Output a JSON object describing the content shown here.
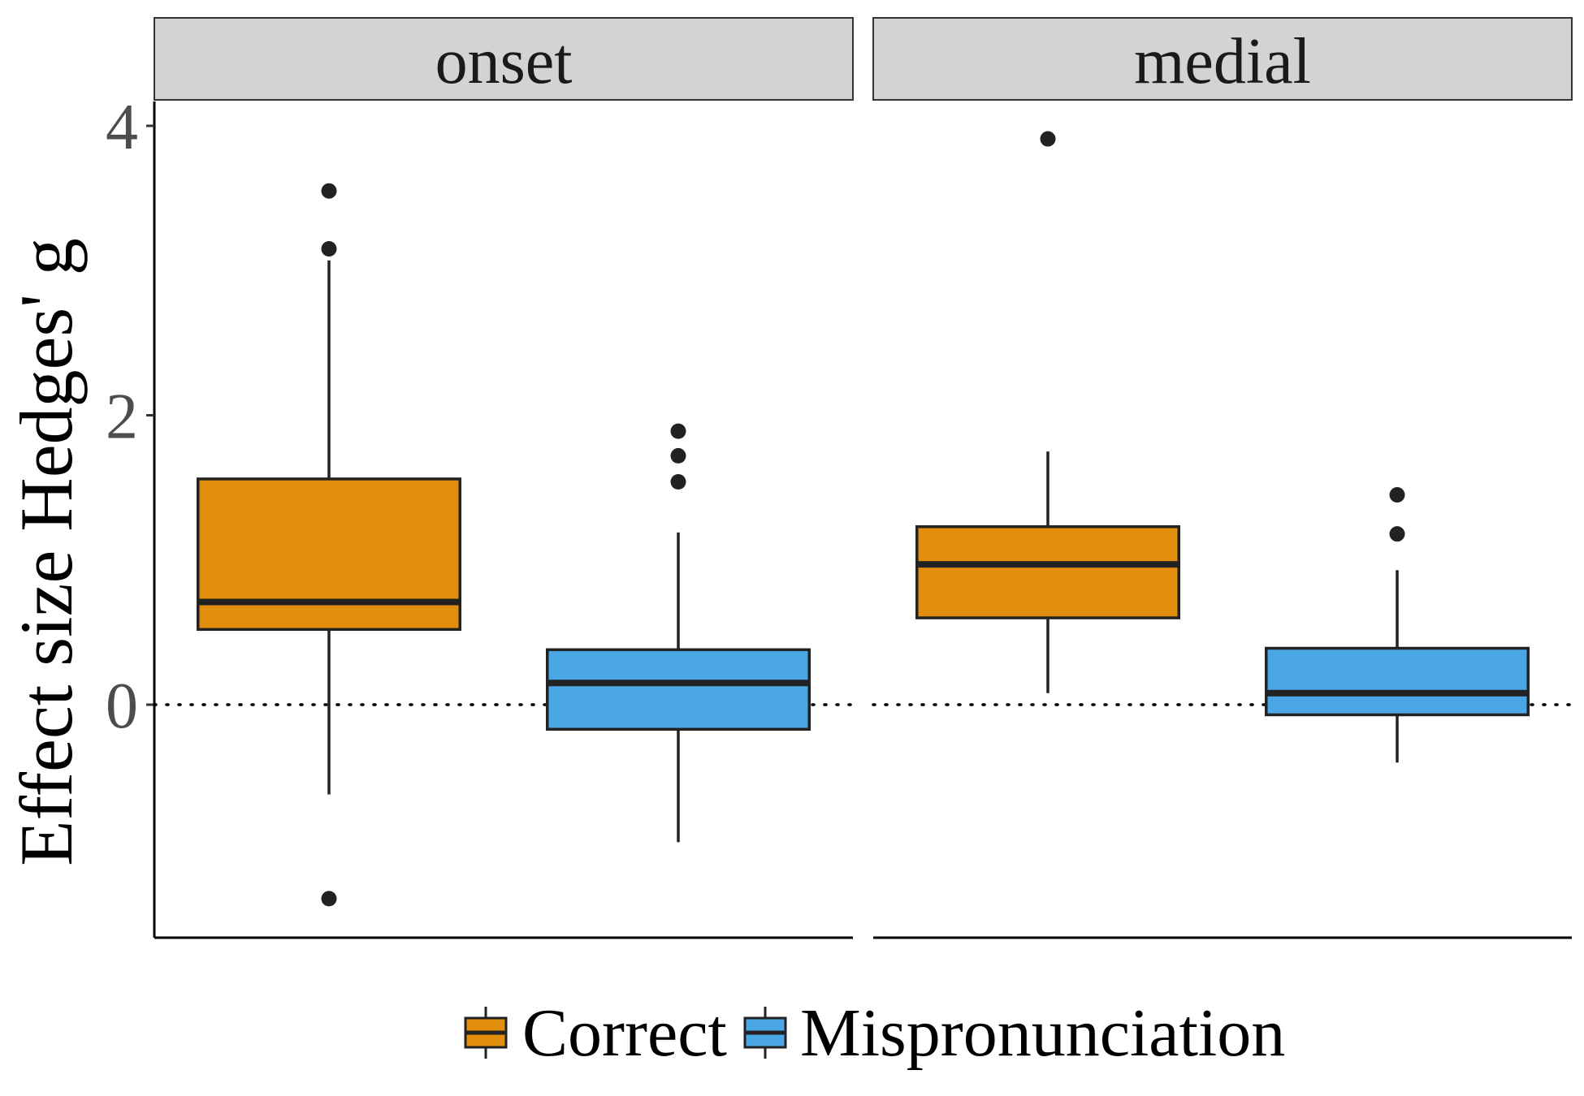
{
  "chart_data": {
    "type": "boxplot",
    "ylabel": "Effect size Hedges' g",
    "xlabel": "",
    "ylim": [
      -1.6,
      4.2
    ],
    "yticks": [
      0,
      2,
      4
    ],
    "reference_line": {
      "y": 0,
      "style": "dotted"
    },
    "grid": false,
    "legend": {
      "position": "bottom"
    },
    "series": [
      {
        "name": "Correct",
        "color": "#E08E0B"
      },
      {
        "name": "Mispronunciation",
        "color": "#4AA6E4"
      }
    ],
    "facets": [
      {
        "label": "onset",
        "boxes": [
          {
            "series": "Correct",
            "q1": 0.52,
            "median": 0.71,
            "q3": 1.56,
            "whisker_low": -0.62,
            "whisker_high": 3.07,
            "outliers": [
              3.55,
              3.15,
              -1.34
            ]
          },
          {
            "series": "Mispronunciation",
            "q1": -0.17,
            "median": 0.15,
            "q3": 0.38,
            "whisker_low": -0.95,
            "whisker_high": 1.19,
            "outliers": [
              1.89,
              1.72,
              1.54
            ]
          }
        ]
      },
      {
        "label": "medial",
        "boxes": [
          {
            "series": "Correct",
            "q1": 0.6,
            "median": 0.97,
            "q3": 1.23,
            "whisker_low": 0.08,
            "whisker_high": 1.75,
            "outliers": [
              3.91
            ]
          },
          {
            "series": "Mispronunciation",
            "q1": -0.07,
            "median": 0.08,
            "q3": 0.39,
            "whisker_low": -0.4,
            "whisker_high": 0.93,
            "outliers": [
              1.45,
              1.18
            ]
          }
        ]
      }
    ]
  }
}
